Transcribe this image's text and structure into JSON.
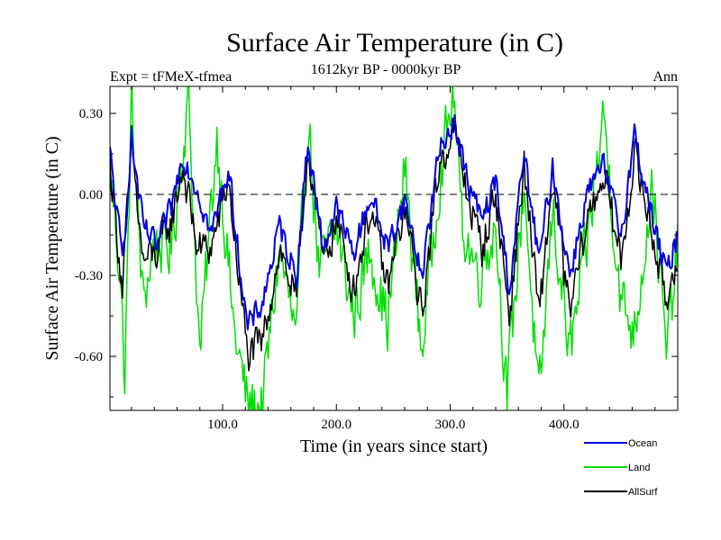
{
  "chart_data": {
    "type": "line",
    "title": "Surface Air Temperature (in C)",
    "subtitle": "1612kyr BP - 0000kyr BP",
    "experiment_label": "Expt = tFMeX-tfmea",
    "season_label": "Ann",
    "xlabel": "Time (in years since start)",
    "ylabel": "Surface Air Temperature (in C)",
    "xlim": [
      1,
      500
    ],
    "ylim": [
      -0.8,
      0.4
    ],
    "x_ticks": [
      {
        "value": 100,
        "label": "100.0"
      },
      {
        "value": 200,
        "label": "200.0"
      },
      {
        "value": 300,
        "label": "300.0"
      },
      {
        "value": 400,
        "label": "400.0"
      }
    ],
    "y_ticks": [
      {
        "value": 0.3,
        "label": "0.30"
      },
      {
        "value": 0.0,
        "label": "0.00"
      },
      {
        "value": -0.3,
        "label": "-0.30"
      },
      {
        "value": -0.6,
        "label": "-0.60"
      }
    ],
    "zero_line": 0.0,
    "series": [
      {
        "name": "Land",
        "color": "#00e000",
        "anchors": [
          [
            1,
            0.1
          ],
          [
            10,
            -0.28
          ],
          [
            14,
            -0.7
          ],
          [
            20,
            0.35
          ],
          [
            30,
            -0.4
          ],
          [
            40,
            -0.18
          ],
          [
            55,
            -0.2
          ],
          [
            70,
            0.36
          ],
          [
            80,
            -0.6
          ],
          [
            95,
            0.22
          ],
          [
            110,
            -0.5
          ],
          [
            122,
            -0.78
          ],
          [
            135,
            -0.78
          ],
          [
            150,
            -0.2
          ],
          [
            165,
            -0.55
          ],
          [
            175,
            0.3
          ],
          [
            185,
            -0.3
          ],
          [
            200,
            -0.12
          ],
          [
            215,
            -0.45
          ],
          [
            230,
            -0.2
          ],
          [
            245,
            -0.48
          ],
          [
            260,
            0.1
          ],
          [
            275,
            -0.58
          ],
          [
            290,
            0.05
          ],
          [
            303,
            0.38
          ],
          [
            310,
            -0.1
          ],
          [
            325,
            -0.3
          ],
          [
            340,
            -0.1
          ],
          [
            350,
            -0.75
          ],
          [
            365,
            0.05
          ],
          [
            378,
            -0.8
          ],
          [
            390,
            -0.05
          ],
          [
            405,
            -0.6
          ],
          [
            420,
            -0.2
          ],
          [
            435,
            0.3
          ],
          [
            450,
            -0.4
          ],
          [
            462,
            -0.5
          ],
          [
            478,
            0.05
          ],
          [
            490,
            -0.6
          ],
          [
            500,
            -0.2
          ]
        ]
      },
      {
        "name": "Ocean",
        "color": "#0000e0",
        "anchors": [
          [
            1,
            0.15
          ],
          [
            12,
            -0.25
          ],
          [
            20,
            0.2
          ],
          [
            30,
            -0.12
          ],
          [
            42,
            -0.2
          ],
          [
            55,
            -0.05
          ],
          [
            65,
            0.15
          ],
          [
            78,
            0.02
          ],
          [
            90,
            -0.15
          ],
          [
            105,
            0.1
          ],
          [
            122,
            -0.5
          ],
          [
            135,
            -0.4
          ],
          [
            150,
            -0.12
          ],
          [
            165,
            -0.3
          ],
          [
            175,
            0.2
          ],
          [
            188,
            -0.2
          ],
          [
            200,
            -0.05
          ],
          [
            215,
            -0.22
          ],
          [
            230,
            0.0
          ],
          [
            245,
            -0.2
          ],
          [
            260,
            -0.02
          ],
          [
            275,
            -0.3
          ],
          [
            290,
            0.15
          ],
          [
            303,
            0.28
          ],
          [
            315,
            0.05
          ],
          [
            328,
            -0.1
          ],
          [
            340,
            0.05
          ],
          [
            352,
            -0.35
          ],
          [
            365,
            0.15
          ],
          [
            378,
            -0.25
          ],
          [
            390,
            0.1
          ],
          [
            405,
            -0.3
          ],
          [
            420,
            0.0
          ],
          [
            435,
            0.1
          ],
          [
            450,
            -0.15
          ],
          [
            462,
            0.22
          ],
          [
            478,
            -0.1
          ],
          [
            490,
            -0.3
          ],
          [
            500,
            -0.15
          ]
        ]
      },
      {
        "name": "AllSurf",
        "color": "#000000",
        "anchors": [
          [
            1,
            0.12
          ],
          [
            12,
            -0.35
          ],
          [
            20,
            0.18
          ],
          [
            30,
            -0.25
          ],
          [
            42,
            -0.22
          ],
          [
            55,
            -0.1
          ],
          [
            65,
            0.1
          ],
          [
            78,
            -0.2
          ],
          [
            90,
            -0.2
          ],
          [
            105,
            0.05
          ],
          [
            122,
            -0.6
          ],
          [
            135,
            -0.55
          ],
          [
            150,
            -0.2
          ],
          [
            165,
            -0.4
          ],
          [
            175,
            0.18
          ],
          [
            188,
            -0.25
          ],
          [
            200,
            -0.1
          ],
          [
            215,
            -0.35
          ],
          [
            230,
            -0.05
          ],
          [
            245,
            -0.35
          ],
          [
            260,
            -0.05
          ],
          [
            275,
            -0.45
          ],
          [
            290,
            0.1
          ],
          [
            303,
            0.25
          ],
          [
            315,
            0.0
          ],
          [
            328,
            -0.2
          ],
          [
            340,
            0.0
          ],
          [
            352,
            -0.45
          ],
          [
            365,
            0.1
          ],
          [
            378,
            -0.45
          ],
          [
            390,
            0.05
          ],
          [
            405,
            -0.45
          ],
          [
            420,
            -0.1
          ],
          [
            435,
            0.08
          ],
          [
            450,
            -0.25
          ],
          [
            462,
            0.15
          ],
          [
            478,
            -0.15
          ],
          [
            490,
            -0.4
          ],
          [
            500,
            -0.2
          ]
        ]
      }
    ]
  }
}
